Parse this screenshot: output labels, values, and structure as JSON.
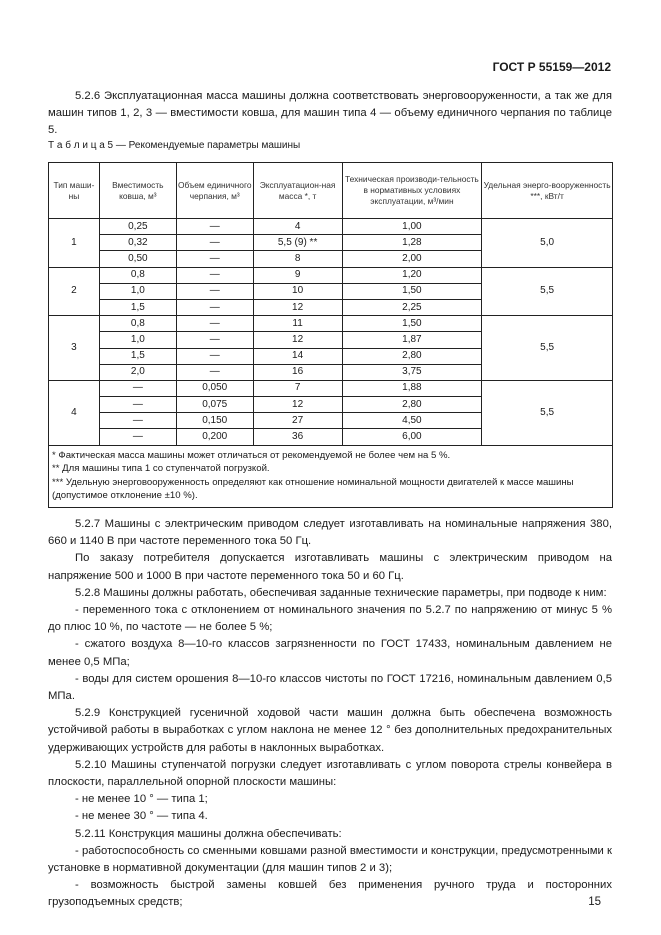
{
  "header": {
    "standard": "ГОСТ Р 55159—2012"
  },
  "intro": "5.2.6 Эксплуатационная масса машины должна соответствовать энерговооруженности, а так же для машин типов 1, 2, 3 — вместимости ковша, для машин типа 4 — объему единичного черпания по таблице 5.",
  "table": {
    "caption": "Т а б л и ц а 5 — Рекомендуемые параметры машины",
    "headers": [
      "Тип маши-ны",
      "Вместимость ковша, м³",
      "Объем единичного черпания, м³",
      "Эксплуатацион-ная масса *, т",
      "Техническая производи-тельность в нормативных условиях эксплуатации, м³/мин",
      "Удельная энерго-вооруженность ***, кВт/т"
    ],
    "groups": [
      {
        "type": "1",
        "energy": "5,0",
        "rows": [
          [
            "0,25",
            "—",
            "4",
            "1,00"
          ],
          [
            "0,32",
            "—",
            "5,5 (9) **",
            "1,28"
          ],
          [
            "0,50",
            "—",
            "8",
            "2,00"
          ]
        ]
      },
      {
        "type": "2",
        "energy": "5,5",
        "rows": [
          [
            "0,8",
            "—",
            "9",
            "1,20"
          ],
          [
            "1,0",
            "—",
            "10",
            "1,50"
          ],
          [
            "1,5",
            "—",
            "12",
            "2,25"
          ]
        ]
      },
      {
        "type": "3",
        "energy": "5,5",
        "rows": [
          [
            "0,8",
            "—",
            "11",
            "1,50"
          ],
          [
            "1,0",
            "—",
            "12",
            "1,87"
          ],
          [
            "1,5",
            "—",
            "14",
            "2,80"
          ],
          [
            "2,0",
            "—",
            "16",
            "3,75"
          ]
        ]
      },
      {
        "type": "4",
        "energy": "5,5",
        "rows": [
          [
            "—",
            "0,050",
            "7",
            "1,88"
          ],
          [
            "—",
            "0,075",
            "12",
            "2,80"
          ],
          [
            "—",
            "0,150",
            "27",
            "4,50"
          ],
          [
            "—",
            "0,200",
            "36",
            "6,00"
          ]
        ]
      }
    ],
    "footnotes": [
      "* Фактическая масса машины может отличаться от рекомендуемой не более чем на 5 %.",
      "**  Для машины типа 1 со ступенчатой погрузкой.",
      "*** Удельную энерговооруженность определяют как отношение номинальной мощности двигателей к массе машины (допустимое отклонение  ±10 %)."
    ]
  },
  "paragraphs": [
    {
      "indent": true,
      "text": "5.2.7 Машины с электрическим приводом следует изготавливать на номинальные напряжения 380, 660 и 1140 В при частоте переменного тока 50 Гц."
    },
    {
      "indent": true,
      "text": "По заказу потребителя допускается изготавливать машины с электрическим приводом на напряжение 500 и 1000 В при частоте переменного тока 50 и 60 Гц."
    },
    {
      "indent": true,
      "text": "5.2.8 Машины должны работать, обеспечивая заданные технические параметры, при подводе к ним:"
    },
    {
      "indent": true,
      "text": "- переменного тока с отклонением от номинального значения по 5.2.7 по напряжению от минус 5 % до плюс 10 %, по частоте — не более 5 %;"
    },
    {
      "indent": true,
      "text": "- сжатого воздуха 8—10-го классов загрязненности по ГОСТ 17433, номинальным давлением не менее 0,5 МПа;"
    },
    {
      "indent": true,
      "text": "- воды для систем орошения 8—10-го классов чистоты по ГОСТ 17216, номинальным давлением 0,5 МПа."
    },
    {
      "indent": true,
      "text": "5.2.9 Конструкцией гусеничной ходовой части машин должна быть обеспечена возможность устойчивой работы в выработках с углом наклона не менее 12 ° без дополнительных предохранительных удерживающих устройств для работы в наклонных выработках."
    },
    {
      "indent": true,
      "text": "5.2.10 Машины ступенчатой погрузки следует изготавливать с углом поворота стрелы конвейера в плоскости, параллельной опорной плоскости машины:"
    },
    {
      "indent": true,
      "text": "- не менее 10 ° — типа 1;"
    },
    {
      "indent": true,
      "text": "- не менее 30 ° — типа 4."
    },
    {
      "indent": true,
      "text": "5.2.11 Конструкция машины должна обеспечивать:"
    },
    {
      "indent": true,
      "text": "- работоспособность со сменными ковшами разной вместимости и конструкции, предусмотренными к установке в нормативной документации (для машин типов 2 и 3);"
    },
    {
      "indent": true,
      "text": "- возможность быстрой замены ковшей без применения ручного труда и посторонних грузоподъемных средств;"
    }
  ],
  "page_number": "15"
}
